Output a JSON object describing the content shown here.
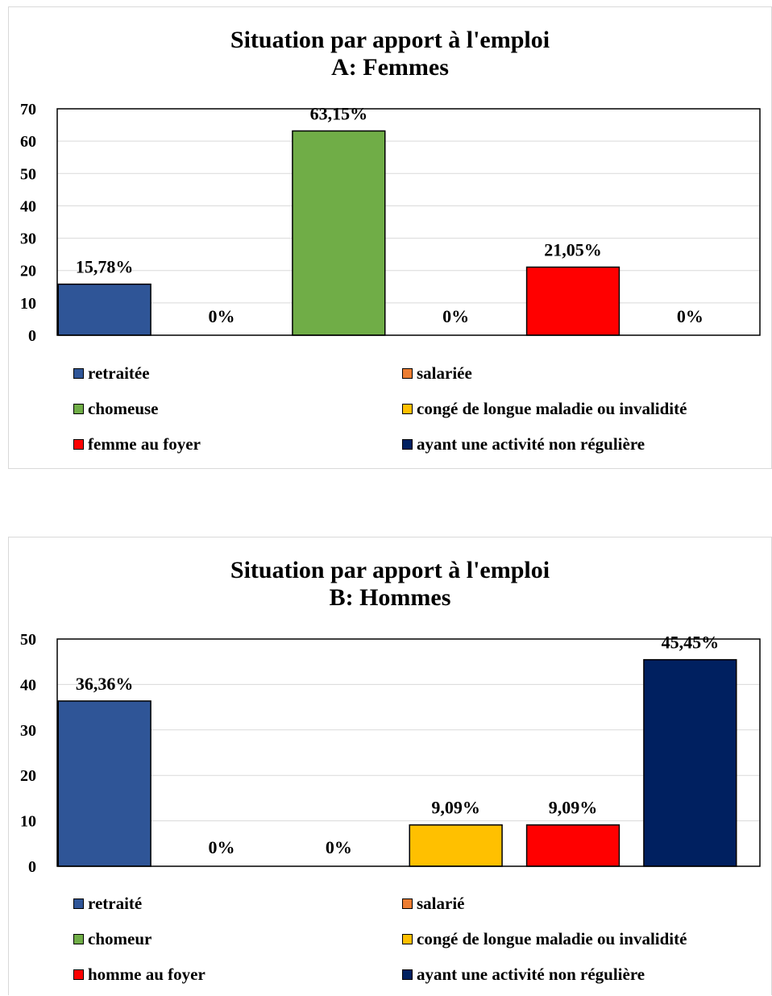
{
  "chart_data": [
    {
      "type": "bar",
      "title_line1": "Situation par apport à l'emploi",
      "title_line2": "A: Femmes",
      "categories": [
        "retraitée",
        "salariée",
        "chomeuse",
        "congé de longue maladie ou invalidité",
        "femme au foyer",
        "ayant une activité non régulière"
      ],
      "values": [
        15.78,
        0,
        63.15,
        0,
        21.05,
        0
      ],
      "data_labels": [
        "15,78%",
        "0%",
        "63,15%",
        "0%",
        "21,05%",
        "0%"
      ],
      "colors": [
        "#2F5597",
        "#ED7D31",
        "#70AD47",
        "#FFC000",
        "#FF0000",
        "#002060"
      ],
      "ylim": [
        0,
        70
      ],
      "yticks": [
        0,
        10,
        20,
        30,
        40,
        50,
        60,
        70
      ],
      "grid": true,
      "legend_position": "bottom"
    },
    {
      "type": "bar",
      "title_line1": "Situation par apport à l'emploi",
      "title_line2": "B: Hommes",
      "categories": [
        "retraité",
        "salarié",
        "chomeur",
        "congé de longue maladie ou invalidité",
        "homme au foyer",
        "ayant une activité non régulière"
      ],
      "values": [
        36.36,
        0,
        0,
        9.09,
        9.09,
        45.45
      ],
      "data_labels": [
        "36,36%",
        "0%",
        "0%",
        "9,09%",
        "9,09%",
        "45,45%"
      ],
      "colors": [
        "#2F5597",
        "#ED7D31",
        "#70AD47",
        "#FFC000",
        "#FF0000",
        "#002060"
      ],
      "ylim": [
        0,
        50
      ],
      "yticks": [
        0,
        10,
        20,
        30,
        40,
        50
      ],
      "grid": true,
      "legend_position": "bottom"
    }
  ]
}
